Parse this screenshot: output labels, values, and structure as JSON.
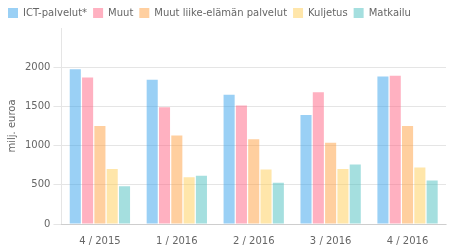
{
  "chart_data": {
    "type": "bar",
    "categories": [
      "4 / 2015",
      "1 / 2016",
      "2 / 2016",
      "3 / 2016",
      "4 / 2016"
    ],
    "series": [
      {
        "name": "ICT-palvelut*",
        "values": [
          1975,
          1840,
          1650,
          1390,
          1880
        ]
      },
      {
        "name": "Muut",
        "values": [
          1870,
          1490,
          1510,
          1680,
          1890
        ]
      },
      {
        "name": "Muut liike-elämän palvelut",
        "values": [
          1250,
          1130,
          1080,
          1035,
          1250
        ]
      },
      {
        "name": "Kuljetus",
        "values": [
          700,
          595,
          695,
          700,
          720
        ]
      },
      {
        "name": "Matkailu",
        "values": [
          480,
          615,
          525,
          760,
          555
        ]
      }
    ],
    "ylabel": "milj. euroa",
    "ylim": [
      0,
      2500
    ],
    "yticks": [
      0,
      500,
      1000,
      1500,
      2000
    ],
    "grid": true,
    "legend": "top"
  }
}
